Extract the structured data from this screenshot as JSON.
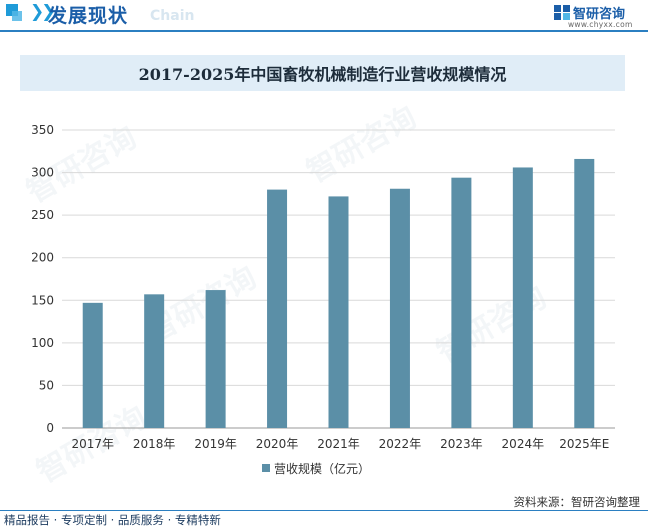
{
  "header": {
    "title": "发展现状",
    "ghost_text": "Chain",
    "logo_name": "智研咨询",
    "logo_url": "www.chyxx.com"
  },
  "footer": {
    "source": "资料来源：智研咨询整理",
    "tagline": "精品报告 · 专项定制 · 品质服务 · 专精特新"
  },
  "watermark": "智研咨询",
  "colors": {
    "bar": "#5b8fa7",
    "accent": "#1f9bd8",
    "brand": "#1b5ea8"
  },
  "chart_data": {
    "type": "bar",
    "title": "2017-2025年中国畜牧机械制造行业营收规模情况",
    "categories": [
      "2017年",
      "2018年",
      "2019年",
      "2020年",
      "2021年",
      "2022年",
      "2023年",
      "2024年",
      "2025年E"
    ],
    "series": [
      {
        "name": "营收规模（亿元）",
        "values": [
          147,
          157,
          162,
          280,
          272,
          281,
          294,
          306,
          316
        ]
      }
    ],
    "ylim": [
      0,
      350
    ],
    "yticks": [
      0,
      50,
      100,
      150,
      200,
      250,
      300,
      350
    ],
    "grid": true,
    "legend": "bottom-center",
    "xlabel": "",
    "ylabel": ""
  }
}
